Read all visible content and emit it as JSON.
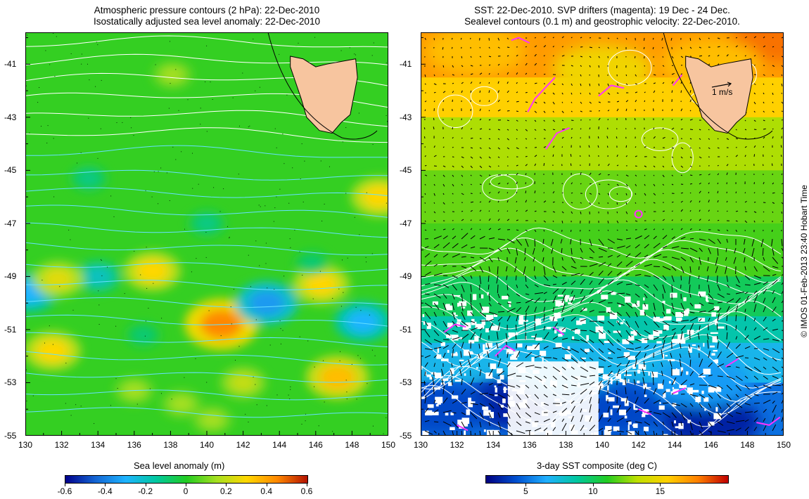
{
  "left_panel": {
    "title_line1": "Atmospheric pressure contours (2 hPa): 22-Dec-2010",
    "title_line2": "Isostatically adjusted sea level anomaly: 22-Dec-2010",
    "colorbar_title": "Sea level anomaly (m)",
    "colorbar_ticks": [
      "-0.6",
      "-0.4",
      "-0.2",
      "0",
      "0.2",
      "0.4",
      "0.6"
    ],
    "colorbar_range": [
      -0.6,
      0.6
    ]
  },
  "right_panel": {
    "title_line1": "SST: 22-Dec-2010. SVP drifters (magenta): 19 Dec - 24 Dec.",
    "title_line2": "Sealevel contours (0.1 m) and geostrophic velocity: 22-Dec-2010.",
    "colorbar_title": "3-day SST composite (deg C)",
    "colorbar_ticks": [
      "5",
      "10",
      "15"
    ],
    "colorbar_range": [
      2,
      20
    ],
    "velocity_scale_label": "1 m/s"
  },
  "axes": {
    "x_ticks": [
      "130",
      "132",
      "134",
      "136",
      "138",
      "140",
      "142",
      "144",
      "146",
      "148",
      "150"
    ],
    "y_ticks": [
      "-41",
      "-43",
      "-45",
      "-47",
      "-49",
      "-51",
      "-53",
      "-55"
    ],
    "lon_range": [
      130,
      150
    ],
    "lat_range": [
      -55,
      -39.8
    ]
  },
  "credit": "© IMOS 01-Feb-2013 23:40 Hobart Time",
  "colors": {
    "land": "#f7c59f",
    "contour_white": "#ffffff",
    "contour_cyan": "#66e0ff",
    "drifter": "#ff33ff",
    "slab_cmap": [
      "#00008b",
      "#1466d4",
      "#1eb4ff",
      "#00c8a0",
      "#22cc22",
      "#a6e020",
      "#ffd700",
      "#ff8800",
      "#b31200"
    ],
    "sst_cmap": [
      "#000080",
      "#0050d0",
      "#20b0ff",
      "#00c8a0",
      "#22cc22",
      "#c0e000",
      "#ffd000",
      "#ff8000",
      "#c00000"
    ]
  },
  "map_data": {
    "sla_features": [
      {
        "lon": 140.8,
        "lat": -50.8,
        "value": 0.45
      },
      {
        "lon": 143.3,
        "lat": -50.0,
        "value": -0.35
      },
      {
        "lon": 130.2,
        "lat": -49.6,
        "value": -0.3
      },
      {
        "lon": 148.6,
        "lat": -50.7,
        "value": -0.3
      },
      {
        "lon": 134.0,
        "lat": -49.0,
        "value": -0.2
      },
      {
        "lon": 137.0,
        "lat": -48.8,
        "value": 0.3
      },
      {
        "lon": 131.8,
        "lat": -49.1,
        "value": 0.25
      },
      {
        "lon": 146.3,
        "lat": -49.3,
        "value": 0.3
      },
      {
        "lon": 147.2,
        "lat": -52.8,
        "value": 0.35
      },
      {
        "lon": 131.5,
        "lat": -51.8,
        "value": 0.3
      },
      {
        "lon": 149.5,
        "lat": -46.0,
        "value": 0.3
      },
      {
        "lon": 142.0,
        "lat": -53.0,
        "value": 0.2
      },
      {
        "lon": 138.1,
        "lat": -41.4,
        "value": 0.15
      },
      {
        "lon": 136.0,
        "lat": -53.3,
        "value": 0.15
      },
      {
        "lon": 138.6,
        "lat": -53.8,
        "value": 0.15
      },
      {
        "lon": 140.3,
        "lat": -54.4,
        "value": 0.15
      },
      {
        "lon": 140.0,
        "lat": -47.0,
        "value": -0.12
      },
      {
        "lon": 133.5,
        "lat": -45.3,
        "value": -0.12
      },
      {
        "lon": 136.5,
        "lat": -51.2,
        "value": -0.1
      },
      {
        "lon": 145.8,
        "lat": -48.5,
        "value": -0.1
      }
    ],
    "sst_features": [
      {
        "lon": 135.0,
        "lat": -53.8,
        "value": 3
      },
      {
        "lon": 140.8,
        "lat": -54.0,
        "value": 4
      },
      {
        "lon": 146.0,
        "lat": -54.5,
        "value": 3
      },
      {
        "lon": 131.0,
        "lat": -54.0,
        "value": 4
      },
      {
        "lon": 138.0,
        "lat": -52.5,
        "value": 7
      },
      {
        "lon": 145.5,
        "lat": -53.0,
        "value": 6
      },
      {
        "lon": 149.8,
        "lat": -40.0,
        "value": 18
      },
      {
        "lon": 133.0,
        "lat": -40.5,
        "value": 16
      },
      {
        "lon": 140.0,
        "lat": -41.2,
        "value": 15
      },
      {
        "lon": 146.0,
        "lat": -41.0,
        "value": 16
      }
    ],
    "tasmania_outline": [
      [
        144.6,
        -40.7
      ],
      [
        145.3,
        -40.8
      ],
      [
        146.0,
        -41.1
      ],
      [
        146.6,
        -41.0
      ],
      [
        147.4,
        -40.9
      ],
      [
        148.2,
        -40.8
      ],
      [
        148.3,
        -41.5
      ],
      [
        148.1,
        -42.2
      ],
      [
        147.9,
        -42.9
      ],
      [
        147.4,
        -43.2
      ],
      [
        146.9,
        -43.6
      ],
      [
        146.2,
        -43.5
      ],
      [
        145.5,
        -43.0
      ],
      [
        145.2,
        -42.3
      ],
      [
        144.9,
        -41.7
      ],
      [
        144.6,
        -41.1
      ]
    ]
  }
}
